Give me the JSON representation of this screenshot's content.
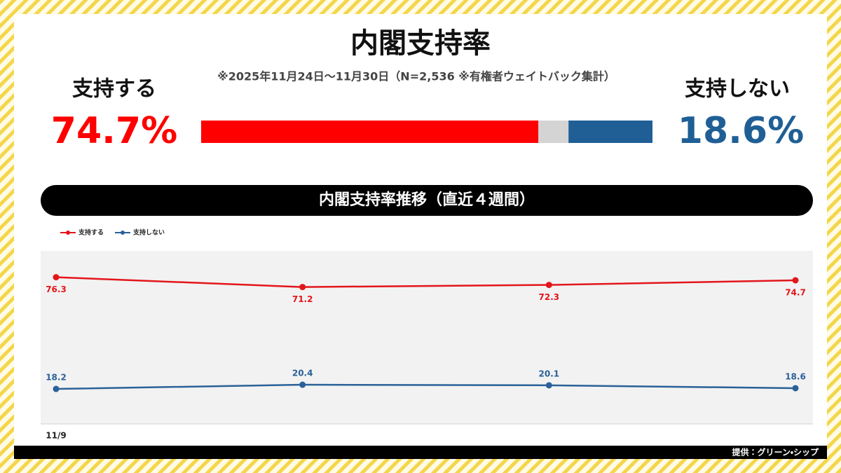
{
  "chart_data": [
    {
      "type": "split-bar",
      "title": "内閣支持率",
      "subtitle": "※2025年11月24日～11月30日（N=2,536 ※有権者ウェイトバック集計）",
      "xlim": [
        0,
        100
      ],
      "series": [
        {
          "name": "支持する",
          "color": "#ff0000",
          "values": [
            74.7
          ],
          "value_labels": [
            "74.7%"
          ]
        },
        {
          "name": "支持しない",
          "color": "#1f5f96",
          "values": [
            18.6
          ],
          "value_labels": [
            "18.6%"
          ]
        }
      ]
    },
    {
      "type": "line",
      "title": "内閣支持率推移（直近４週間）",
      "categories": [
        "11/9",
        null,
        null,
        null
      ],
      "ylim": [
        0,
        90
      ],
      "legend": "top-left",
      "series": [
        {
          "name": "支持する",
          "color": "#e3161c",
          "values": [
            76.3,
            71.2,
            72.3,
            74.7
          ]
        },
        {
          "name": "支持しない",
          "color": "#2a6199",
          "values": [
            18.2,
            20.4,
            20.1,
            18.6
          ]
        }
      ]
    }
  ],
  "credit": "提供：グリーン・シップ"
}
